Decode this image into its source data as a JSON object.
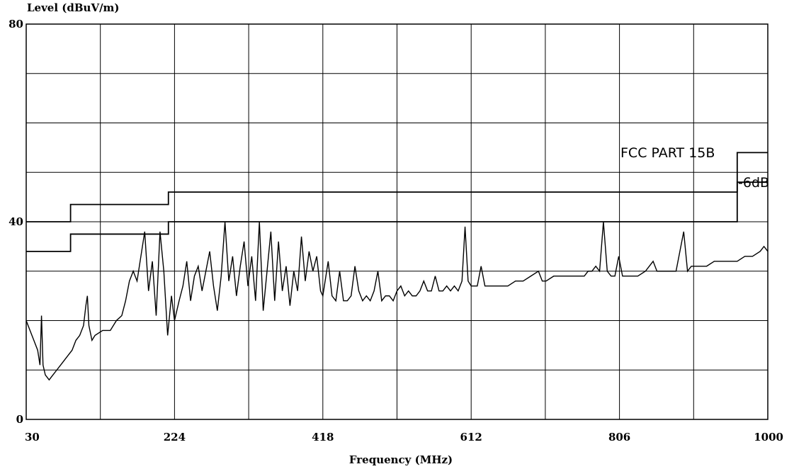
{
  "chart_data": {
    "type": "line",
    "ylabel": "Level (dBuV/m)",
    "xlabel": "Frequency (MHz)",
    "xlim": [
      30,
      1000
    ],
    "ylim": [
      0,
      80
    ],
    "x_ticks": [
      30,
      224,
      418,
      612,
      806,
      1000
    ],
    "y_ticks": [
      0,
      40,
      80
    ],
    "grid": true,
    "annotations": [
      "FCC PART 15B",
      "-6dB"
    ],
    "limit_lines": [
      {
        "label": "FCC PART 15B",
        "steps": [
          [
            30,
            40
          ],
          [
            88,
            43.5
          ],
          [
            216,
            46
          ],
          [
            960,
            54
          ],
          [
            1000,
            54
          ]
        ]
      },
      {
        "label": "-6dB",
        "steps": [
          [
            30,
            34
          ],
          [
            88,
            37.5
          ],
          [
            216,
            40
          ],
          [
            960,
            48
          ],
          [
            1000,
            48
          ]
        ]
      }
    ],
    "series": [
      {
        "values": [
          [
            30,
            20
          ],
          [
            35,
            18
          ],
          [
            40,
            16
          ],
          [
            45,
            14
          ],
          [
            48,
            11
          ],
          [
            50,
            21
          ],
          [
            52,
            11
          ],
          [
            55,
            9
          ],
          [
            60,
            8
          ],
          [
            65,
            9
          ],
          [
            70,
            10
          ],
          [
            75,
            11
          ],
          [
            80,
            12
          ],
          [
            85,
            13
          ],
          [
            90,
            14
          ],
          [
            95,
            16
          ],
          [
            100,
            17
          ],
          [
            105,
            19
          ],
          [
            108,
            23
          ],
          [
            110,
            25
          ],
          [
            112,
            19
          ],
          [
            116,
            16
          ],
          [
            120,
            17
          ],
          [
            130,
            18
          ],
          [
            140,
            18
          ],
          [
            148,
            20
          ],
          [
            155,
            21
          ],
          [
            160,
            24
          ],
          [
            165,
            28
          ],
          [
            170,
            30
          ],
          [
            175,
            28
          ],
          [
            180,
            33
          ],
          [
            185,
            38
          ],
          [
            190,
            26
          ],
          [
            195,
            32
          ],
          [
            200,
            21
          ],
          [
            205,
            38
          ],
          [
            210,
            30
          ],
          [
            215,
            17
          ],
          [
            220,
            25
          ],
          [
            224,
            20
          ],
          [
            230,
            24
          ],
          [
            235,
            27
          ],
          [
            240,
            32
          ],
          [
            245,
            24
          ],
          [
            250,
            29
          ],
          [
            255,
            31
          ],
          [
            260,
            26
          ],
          [
            265,
            30
          ],
          [
            270,
            34
          ],
          [
            275,
            27
          ],
          [
            280,
            22
          ],
          [
            285,
            29
          ],
          [
            290,
            40
          ],
          [
            295,
            28
          ],
          [
            300,
            33
          ],
          [
            305,
            25
          ],
          [
            310,
            31
          ],
          [
            315,
            36
          ],
          [
            320,
            27
          ],
          [
            325,
            33
          ],
          [
            330,
            24
          ],
          [
            335,
            40
          ],
          [
            340,
            22
          ],
          [
            345,
            30
          ],
          [
            350,
            38
          ],
          [
            355,
            24
          ],
          [
            360,
            36
          ],
          [
            365,
            26
          ],
          [
            370,
            31
          ],
          [
            375,
            23
          ],
          [
            380,
            30
          ],
          [
            385,
            26
          ],
          [
            390,
            37
          ],
          [
            395,
            28
          ],
          [
            400,
            34
          ],
          [
            405,
            30
          ],
          [
            410,
            33
          ],
          [
            415,
            26
          ],
          [
            418,
            25
          ],
          [
            425,
            32
          ],
          [
            430,
            25
          ],
          [
            435,
            24
          ],
          [
            440,
            30
          ],
          [
            445,
            24
          ],
          [
            450,
            24
          ],
          [
            455,
            25
          ],
          [
            460,
            31
          ],
          [
            465,
            26
          ],
          [
            470,
            24
          ],
          [
            475,
            25
          ],
          [
            480,
            24
          ],
          [
            485,
            26
          ],
          [
            490,
            30
          ],
          [
            495,
            24
          ],
          [
            500,
            25
          ],
          [
            505,
            25
          ],
          [
            510,
            24
          ],
          [
            515,
            26
          ],
          [
            520,
            27
          ],
          [
            525,
            25
          ],
          [
            530,
            26
          ],
          [
            535,
            25
          ],
          [
            540,
            25
          ],
          [
            545,
            26
          ],
          [
            550,
            28
          ],
          [
            555,
            26
          ],
          [
            560,
            26
          ],
          [
            565,
            29
          ],
          [
            570,
            26
          ],
          [
            575,
            26
          ],
          [
            580,
            27
          ],
          [
            585,
            26
          ],
          [
            590,
            27
          ],
          [
            595,
            26
          ],
          [
            600,
            28
          ],
          [
            604,
            39
          ],
          [
            608,
            28
          ],
          [
            612,
            27
          ],
          [
            620,
            27
          ],
          [
            625,
            31
          ],
          [
            630,
            27
          ],
          [
            640,
            27
          ],
          [
            650,
            27
          ],
          [
            660,
            27
          ],
          [
            670,
            28
          ],
          [
            680,
            28
          ],
          [
            690,
            29
          ],
          [
            700,
            30
          ],
          [
            705,
            28
          ],
          [
            710,
            28
          ],
          [
            720,
            29
          ],
          [
            730,
            29
          ],
          [
            740,
            29
          ],
          [
            750,
            29
          ],
          [
            760,
            29
          ],
          [
            765,
            30
          ],
          [
            770,
            30
          ],
          [
            775,
            31
          ],
          [
            780,
            30
          ],
          [
            785,
            40
          ],
          [
            790,
            30
          ],
          [
            795,
            29
          ],
          [
            800,
            29
          ],
          [
            805,
            33
          ],
          [
            810,
            29
          ],
          [
            815,
            29
          ],
          [
            820,
            29
          ],
          [
            830,
            29
          ],
          [
            840,
            30
          ],
          [
            850,
            32
          ],
          [
            855,
            30
          ],
          [
            860,
            30
          ],
          [
            870,
            30
          ],
          [
            880,
            30
          ],
          [
            890,
            38
          ],
          [
            895,
            30
          ],
          [
            900,
            31
          ],
          [
            910,
            31
          ],
          [
            920,
            31
          ],
          [
            930,
            32
          ],
          [
            940,
            32
          ],
          [
            950,
            32
          ],
          [
            960,
            32
          ],
          [
            970,
            33
          ],
          [
            980,
            33
          ],
          [
            990,
            34
          ],
          [
            995,
            35
          ],
          [
            1000,
            34
          ]
        ]
      }
    ]
  }
}
